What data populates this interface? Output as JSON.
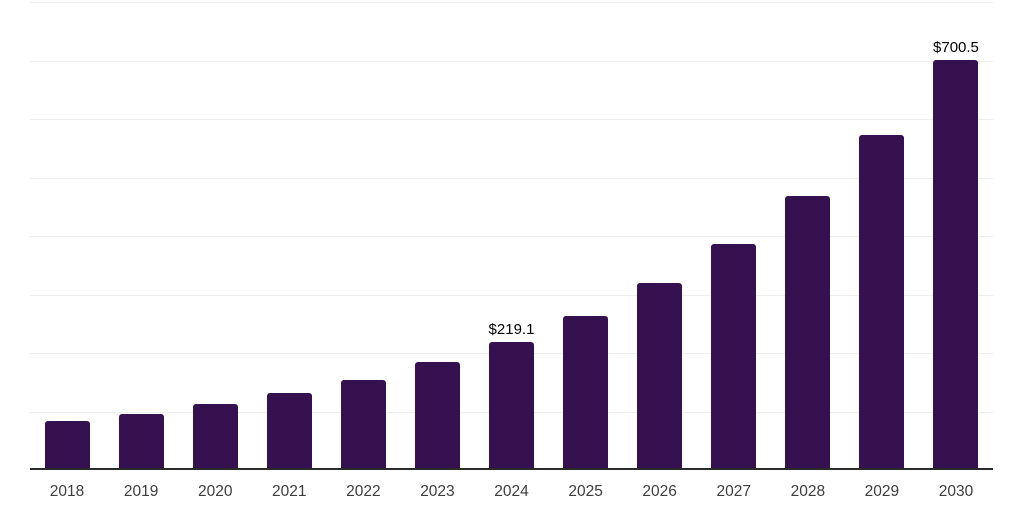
{
  "chart_data": {
    "type": "bar",
    "title": "",
    "xlabel": "",
    "ylabel": "",
    "categories": [
      "2018",
      "2019",
      "2020",
      "2021",
      "2022",
      "2023",
      "2024",
      "2025",
      "2026",
      "2027",
      "2028",
      "2029",
      "2030"
    ],
    "values": [
      83,
      95,
      112,
      131,
      154,
      185,
      219.1,
      264,
      319,
      386,
      469,
      572,
      700.5
    ],
    "value_labels": {
      "2024": "$219.1",
      "2030": "$700.5"
    },
    "ylim": [
      0,
      800
    ],
    "gridline_step": 100,
    "grid": "horizontal",
    "legend_visible": false,
    "y_tick_labels_visible": false
  },
  "colors": {
    "background": "#FFFFFF",
    "bar": "#35114F",
    "grid_line": "#EFEFEF",
    "axis_line": "#2B2B2B",
    "x_tick_label": "#3D3D3D",
    "value_label": "#000000"
  }
}
